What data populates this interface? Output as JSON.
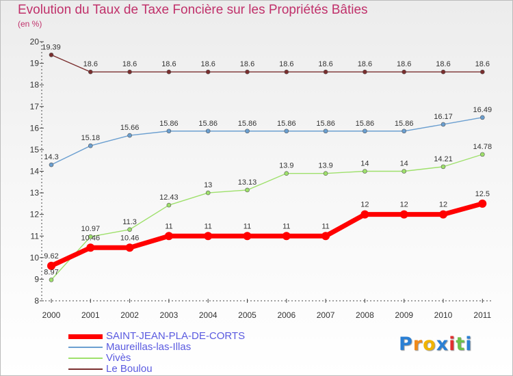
{
  "header": {
    "title": "Evolution du Taux de Taxe Foncière sur les Propriétés Bâties",
    "unit": "(en %)"
  },
  "chart_data": {
    "type": "line",
    "title": "Evolution du Taux de Taxe Foncière sur les Propriétés Bâties",
    "ylabel": "(en %)",
    "xlabel": "",
    "ylim": [
      8,
      20
    ],
    "yticks": [
      8,
      9,
      10,
      11,
      12,
      13,
      14,
      15,
      16,
      17,
      18,
      19,
      20
    ],
    "grid": false,
    "legend_position": "bottom-left",
    "x": [
      "2000",
      "2001",
      "2002",
      "2003",
      "2004",
      "2005",
      "2006",
      "2007",
      "2008",
      "2009",
      "2010",
      "2011"
    ],
    "series": [
      {
        "name": "Le Boulou",
        "color": "#7a2e2e",
        "values": [
          19.39,
          18.6,
          18.6,
          18.6,
          18.6,
          18.6,
          18.6,
          18.6,
          18.6,
          18.6,
          18.6,
          18.6
        ],
        "labels": [
          "19.39",
          "18.6",
          "18.6",
          "18.6",
          "18.6",
          "18.6",
          "18.6",
          "18.6",
          "18.6",
          "18.6",
          "18.6",
          "18.6"
        ]
      },
      {
        "name": "Maureillas-las-Illas",
        "color": "#6b9fd0",
        "values": [
          14.3,
          15.18,
          15.66,
          15.86,
          15.86,
          15.86,
          15.86,
          15.86,
          15.86,
          15.86,
          16.17,
          16.49
        ],
        "labels": [
          "14.3",
          "15.18",
          "15.66",
          "15.86",
          "15.86",
          "15.86",
          "15.86",
          "15.86",
          "15.86",
          "15.86",
          "16.17",
          "16.49"
        ]
      },
      {
        "name": "Vivès",
        "color": "#9ee06b",
        "values": [
          8.97,
          10.97,
          11.3,
          12.43,
          13,
          13.13,
          13.9,
          13.9,
          14,
          14,
          14.21,
          14.78
        ],
        "labels": [
          "8.97",
          "10.97",
          "11.3",
          "12.43",
          "13",
          "13.13",
          "13.9",
          "13.9",
          "14",
          "14",
          "14.21",
          "14.78"
        ]
      },
      {
        "name": "SAINT-JEAN-PLA-DE-CORTS",
        "color": "#ff0000",
        "values": [
          9.62,
          10.46,
          10.46,
          11,
          11,
          11,
          11,
          11,
          12,
          12,
          12,
          12.5
        ],
        "labels": [
          "9.62",
          "10.46",
          "10.46",
          "11",
          "11",
          "11",
          "11",
          "11",
          "12",
          "12",
          "12",
          "12.5"
        ]
      }
    ]
  },
  "legend": {
    "items": [
      {
        "label": "SAINT-JEAN-PLA-DE-CORTS",
        "color": "#ff0000"
      },
      {
        "label": "Maureillas-las-Illas",
        "color": "#6b9fd0"
      },
      {
        "label": "Vivès",
        "color": "#9ee06b"
      },
      {
        "label": "Le Boulou",
        "color": "#7a2e2e"
      }
    ]
  },
  "logo": {
    "letters": [
      "P",
      "r",
      "o",
      "x",
      "i",
      "t",
      "i"
    ],
    "colors": [
      "#2a7fd4",
      "#f08a1a",
      "#f0b400",
      "#2a7fd4",
      "#e03030",
      "#6cc04a",
      "#2a7fd4"
    ]
  }
}
